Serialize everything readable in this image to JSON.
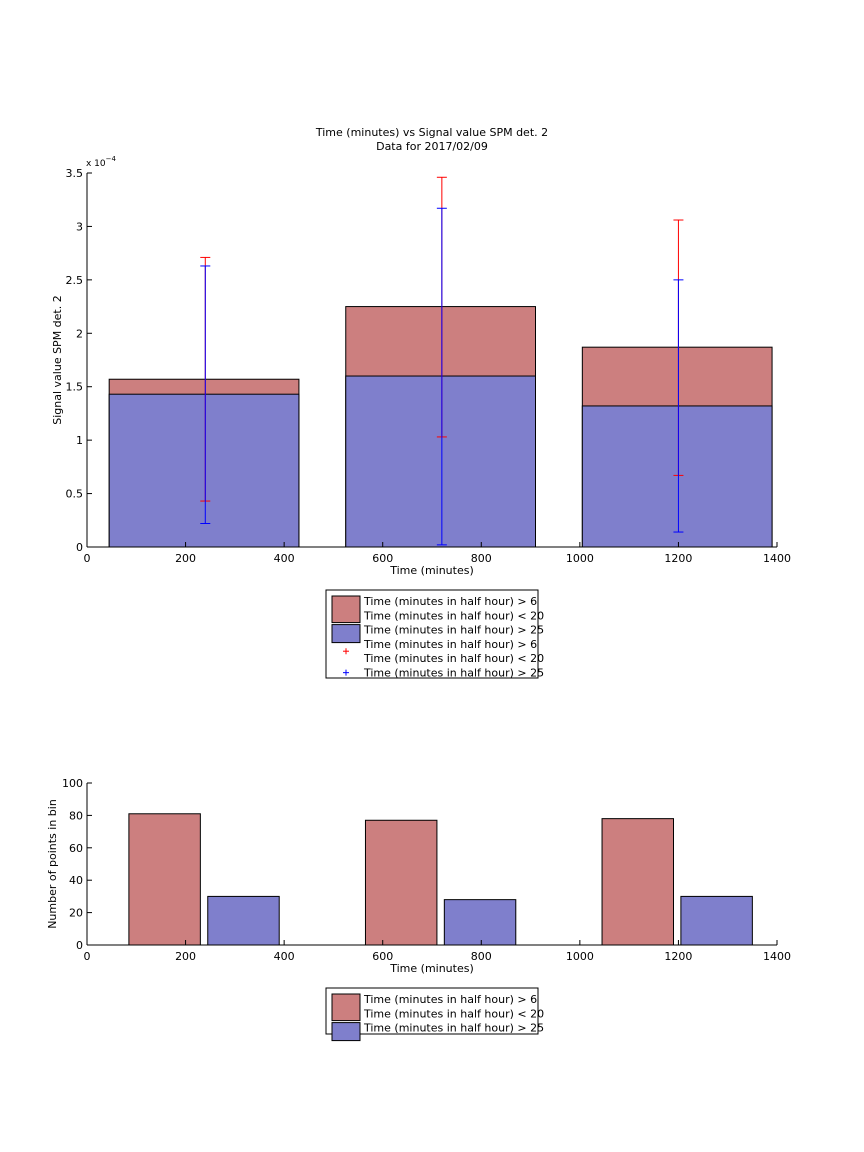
{
  "chart_data": [
    {
      "type": "bar",
      "title": "Time (minutes) vs Signal value SPM det. 2",
      "subtitle": "Data for 2017/02/09",
      "xlabel": "Time (minutes)",
      "ylabel": "Signal value SPM det. 2",
      "y_exponent_label": "x 10",
      "y_exponent_power": "−4",
      "xlim": [
        0,
        1400
      ],
      "ylim": [
        0,
        3.5
      ],
      "x_ticks": [
        0,
        200,
        400,
        600,
        800,
        1000,
        1200,
        1400
      ],
      "y_ticks": [
        0,
        0.5,
        1,
        1.5,
        2,
        2.5,
        3,
        3.5
      ],
      "y_tick_labels": [
        "0",
        "0.5",
        "1",
        "1.5",
        "2",
        "2.5",
        "3",
        "3.5"
      ],
      "grid": false,
      "legend_placement": "below",
      "bins": [
        {
          "x0": 45,
          "x1": 430
        },
        {
          "x0": 525,
          "x1": 910
        },
        {
          "x0": 1005,
          "x1": 1390
        }
      ],
      "series": [
        {
          "name": "Time (minutes in half hour) > 6\nTime (minutes in half hour) < 20",
          "color": "#cc7f7f",
          "values": [
            1.57,
            2.25,
            1.87
          ],
          "errorbars": {
            "x": [
              240,
              720,
              1200
            ],
            "low": [
              0.43,
              1.03,
              0.67
            ],
            "high": [
              2.71,
              3.46,
              3.06
            ],
            "color": "#ff0000"
          }
        },
        {
          "name": "Time (minutes in half hour) > 25",
          "color": "#7f7fcc",
          "values": [
            1.43,
            1.6,
            1.32
          ],
          "errorbars": {
            "x": [
              240,
              720,
              1200
            ],
            "low": [
              0.22,
              0.02,
              0.14
            ],
            "high": [
              2.63,
              3.17,
              2.5
            ],
            "color": "#0000ff"
          }
        }
      ],
      "legend": [
        {
          "kind": "patch",
          "color": "#cc7f7f",
          "lines": [
            "Time (minutes in half hour) > 6",
            "Time (minutes in half hour) < 20"
          ]
        },
        {
          "kind": "patch",
          "color": "#7f7fcc",
          "lines": [
            "Time (minutes in half hour) > 25"
          ]
        },
        {
          "kind": "marker",
          "color": "#ff0000",
          "lines": [
            "Time (minutes in half hour) > 6",
            "Time (minutes in half hour) < 20"
          ]
        },
        {
          "kind": "marker",
          "color": "#0000ff",
          "lines": [
            "Time (minutes in half hour) > 25"
          ]
        }
      ]
    },
    {
      "type": "bar",
      "title": "",
      "xlabel": "Time (minutes)",
      "ylabel": "Number of points in bin",
      "xlim": [
        0,
        1400
      ],
      "ylim": [
        0,
        100
      ],
      "x_ticks": [
        0,
        200,
        400,
        600,
        800,
        1000,
        1200,
        1400
      ],
      "y_ticks": [
        0,
        20,
        40,
        60,
        80,
        100
      ],
      "grid": false,
      "legend_placement": "below",
      "series": [
        {
          "name": "Time (minutes in half hour) > 6\nTime (minutes in half hour) < 20",
          "color": "#cc7f7f",
          "bars": [
            {
              "x0": 85,
              "x1": 230,
              "value": 81
            },
            {
              "x0": 565,
              "x1": 710,
              "value": 77
            },
            {
              "x0": 1045,
              "x1": 1190,
              "value": 78
            }
          ]
        },
        {
          "name": "Time (minutes in half hour) > 25",
          "color": "#7f7fcc",
          "bars": [
            {
              "x0": 245,
              "x1": 390,
              "value": 30
            },
            {
              "x0": 725,
              "x1": 870,
              "value": 28
            },
            {
              "x0": 1205,
              "x1": 1350,
              "value": 30
            }
          ]
        }
      ],
      "legend": [
        {
          "kind": "patch",
          "color": "#cc7f7f",
          "lines": [
            "Time (minutes in half hour) > 6",
            "Time (minutes in half hour) < 20"
          ]
        },
        {
          "kind": "patch",
          "color": "#7f7fcc",
          "lines": [
            "Time (minutes in half hour) > 25"
          ]
        }
      ]
    }
  ]
}
